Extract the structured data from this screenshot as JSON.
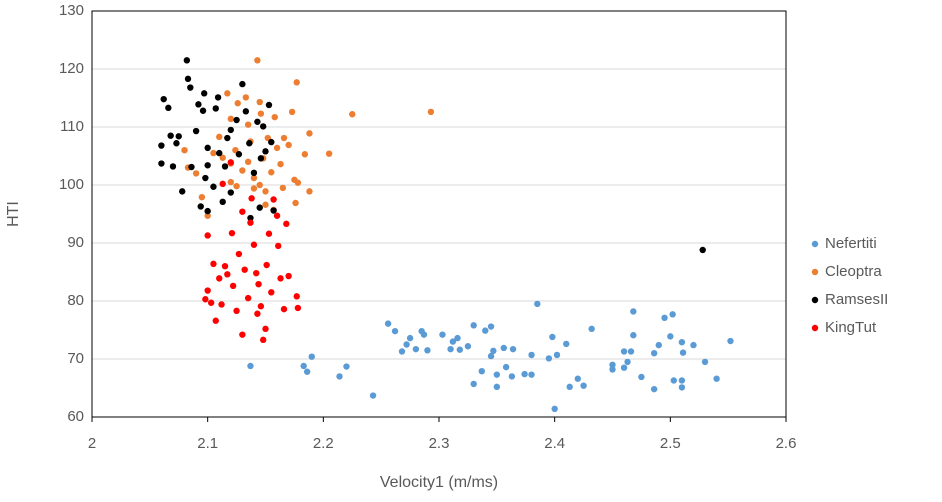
{
  "chart_data": {
    "type": "scatter",
    "x_label": "Velocity1 (m/ms)",
    "y_label": "HTI",
    "xlim": [
      2,
      2.6
    ],
    "xticks": [
      2,
      2.1,
      2.2,
      2.3,
      2.4,
      2.5,
      2.6
    ],
    "ylim": [
      60,
      130
    ],
    "yticks": [
      60,
      70,
      80,
      90,
      100,
      110,
      120,
      130
    ],
    "grid": true,
    "legend": "right",
    "series": [
      {
        "name": "Nefertiti",
        "color": "#5b9bd5",
        "x": [
          2.137,
          2.183,
          2.186,
          2.19,
          2.214,
          2.22,
          2.243,
          2.256,
          2.262,
          2.268,
          2.272,
          2.275,
          2.28,
          2.285,
          2.287,
          2.29,
          2.303,
          2.31,
          2.312,
          2.316,
          2.318,
          2.325,
          2.33,
          2.33,
          2.337,
          2.34,
          2.345,
          2.345,
          2.347,
          2.35,
          2.35,
          2.356,
          2.358,
          2.363,
          2.364,
          2.374,
          2.38,
          2.38,
          2.385,
          2.395,
          2.398,
          2.4,
          2.402,
          2.41,
          2.413,
          2.42,
          2.425,
          2.432,
          2.45,
          2.45,
          2.46,
          2.46,
          2.463,
          2.466,
          2.468,
          2.468,
          2.475,
          2.486,
          2.486,
          2.49,
          2.495,
          2.5,
          2.502,
          2.503,
          2.51,
          2.51,
          2.51,
          2.511,
          2.52,
          2.53,
          2.54,
          2.552
        ],
        "values": [
          68.8,
          68.8,
          67.8,
          70.4,
          67,
          68.7,
          63.7,
          76.1,
          74.8,
          71.3,
          72.5,
          73.6,
          71.7,
          74.8,
          74.2,
          71.5,
          74.2,
          71.7,
          73,
          73.6,
          71.6,
          72.2,
          65.7,
          75.8,
          67.9,
          74.9,
          75.6,
          70.5,
          71.4,
          65.2,
          67.3,
          71.9,
          68.6,
          67,
          71.7,
          67.4,
          70.7,
          67.3,
          79.5,
          70.1,
          73.8,
          61.4,
          70.7,
          72.6,
          65.2,
          66.6,
          65.4,
          75.2,
          68.2,
          69,
          71.3,
          68.5,
          69.5,
          71.3,
          74.1,
          78.2,
          66.9,
          71,
          64.8,
          72.4,
          77.1,
          73.9,
          77.7,
          66.3,
          72.9,
          66.3,
          65.1,
          71.1,
          72.4,
          69.5,
          66.6,
          73.1
        ]
      },
      {
        "name": "Cleoptra",
        "color": "#ed7d31",
        "x": [
          2.08,
          2.083,
          2.09,
          2.095,
          2.1,
          2.105,
          2.11,
          2.113,
          2.117,
          2.12,
          2.12,
          2.124,
          2.125,
          2.126,
          2.13,
          2.133,
          2.135,
          2.137,
          2.14,
          2.14,
          2.143,
          2.145,
          2.146,
          2.148,
          2.15,
          2.152,
          2.155,
          2.157,
          2.158,
          2.16,
          2.163,
          2.165,
          2.166,
          2.17,
          2.173,
          2.175,
          2.176,
          2.177,
          2.178,
          2.184,
          2.188,
          2.188,
          2.205,
          2.225,
          2.293,
          2.145,
          2.15,
          2.135,
          2.12
        ],
        "values": [
          106,
          103,
          102,
          97.9,
          94.7,
          105.5,
          108.3,
          104.7,
          115.8,
          111.4,
          103.7,
          106,
          99.8,
          114.1,
          102.5,
          115.1,
          110.4,
          107.5,
          101.2,
          99.4,
          121.5,
          114.3,
          112.3,
          104.6,
          98.9,
          108.1,
          102.2,
          95.7,
          111.7,
          106.4,
          103.6,
          99.5,
          108.1,
          106.9,
          112.6,
          100.9,
          96.9,
          117.7,
          100.4,
          105.3,
          108.9,
          98.9,
          105.4,
          112.2,
          112.6,
          100,
          96.6,
          104,
          100.5
        ]
      },
      {
        "name": "RamsesII",
        "color": "#000000",
        "x": [
          2.06,
          2.06,
          2.062,
          2.066,
          2.068,
          2.07,
          2.073,
          2.075,
          2.078,
          2.082,
          2.083,
          2.085,
          2.086,
          2.09,
          2.092,
          2.094,
          2.096,
          2.097,
          2.098,
          2.1,
          2.1,
          2.105,
          2.107,
          2.109,
          2.11,
          2.113,
          2.115,
          2.117,
          2.12,
          2.125,
          2.127,
          2.13,
          2.133,
          2.136,
          2.137,
          2.14,
          2.143,
          2.145,
          2.146,
          2.148,
          2.15,
          2.153,
          2.155,
          2.157,
          2.528,
          2.1,
          2.12
        ],
        "values": [
          103.7,
          106.8,
          114.8,
          113.3,
          108.5,
          103.2,
          107.2,
          108.4,
          98.9,
          121.5,
          118.3,
          116.8,
          103.1,
          109.3,
          113.9,
          96.3,
          112.8,
          115.8,
          101.2,
          95.5,
          106.4,
          99.7,
          113.2,
          115.1,
          105.5,
          97.1,
          103.2,
          108.1,
          98.7,
          111.2,
          105.3,
          117.4,
          112.7,
          107.2,
          94.3,
          102.1,
          110.9,
          96.1,
          104.6,
          110.1,
          105.8,
          113.8,
          107.4,
          95.6,
          88.8,
          103.4,
          109.5
        ]
      },
      {
        "name": "KingTut",
        "color": "#ff0000",
        "x": [
          2.1,
          2.1,
          2.103,
          2.105,
          2.107,
          2.11,
          2.112,
          2.115,
          2.117,
          2.12,
          2.121,
          2.122,
          2.125,
          2.127,
          2.13,
          2.13,
          2.132,
          2.135,
          2.137,
          2.138,
          2.14,
          2.142,
          2.144,
          2.146,
          2.148,
          2.15,
          2.151,
          2.153,
          2.155,
          2.157,
          2.16,
          2.161,
          2.163,
          2.166,
          2.168,
          2.17,
          2.177,
          2.178,
          2.113,
          2.098,
          2.143
        ],
        "values": [
          91.3,
          81.8,
          79.7,
          86.4,
          76.6,
          83.9,
          79.4,
          86,
          84.6,
          103.9,
          91.7,
          82.6,
          78.3,
          88.1,
          74.2,
          95.4,
          85.4,
          80.5,
          93.5,
          97.7,
          89.7,
          84.8,
          82.9,
          79.1,
          73.3,
          75.2,
          86.2,
          91.6,
          81.5,
          97.5,
          94.7,
          89.5,
          83.9,
          78.6,
          93.3,
          84.3,
          80.8,
          78.8,
          100.2,
          80.3,
          77.8
        ]
      }
    ]
  }
}
